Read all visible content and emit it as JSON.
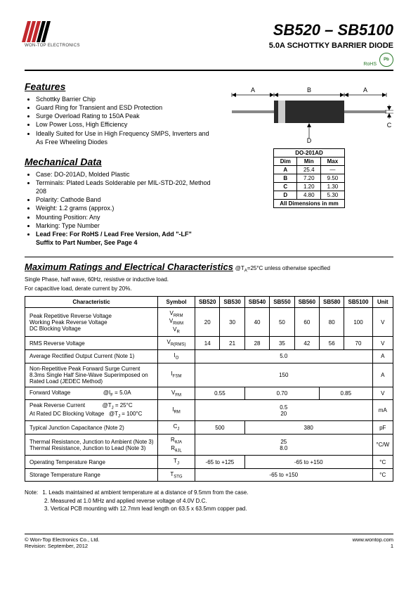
{
  "logo": {
    "company": "WON-TOP ELECTRONICS",
    "bar_colors": [
      "#c1272d",
      "#c1272d",
      "#c1272d",
      "#000000",
      "#000000"
    ]
  },
  "title": {
    "main": "SB520 – SB5100",
    "sub": "5.0A SCHOTTKY BARRIER DIODE"
  },
  "badges": {
    "rohs": "RoHS",
    "pb": "Pb"
  },
  "features": {
    "heading": "Features",
    "items": [
      "Schottky Barrier Chip",
      "Guard Ring for Transient and ESD Protection",
      "Surge Overload Rating to 150A Peak",
      "Low Power Loss, High Efficiency",
      "Ideally Suited for Use in High Frequency SMPS, Inverters and As Free Wheeling Diodes"
    ]
  },
  "mechanical": {
    "heading": "Mechanical Data",
    "items": [
      "Case: DO-201AD, Molded Plastic",
      "Terminals: Plated Leads Solderable per MIL-STD-202, Method 208",
      "Polarity: Cathode Band",
      "Weight: 1.2 grams (approx.)",
      "Mounting Position: Any",
      "Marking: Type Number",
      "Lead Free: For RoHS / Lead Free Version, Add \"-LF\" Suffix to Part Number, See Page 4"
    ]
  },
  "package_diagram": {
    "labels": {
      "A": "A",
      "B": "B",
      "C": "C",
      "D": "D"
    },
    "body_color": "#2b2b2b",
    "band_color": "#cccccc",
    "lead_color": "#888888"
  },
  "dim_table": {
    "title": "DO-201AD",
    "header": [
      "Dim",
      "Min",
      "Max"
    ],
    "rows": [
      [
        "A",
        "25.4",
        "—"
      ],
      [
        "B",
        "7.20",
        "9.50"
      ],
      [
        "C",
        "1.20",
        "1.30"
      ],
      [
        "D",
        "4.80",
        "5.30"
      ]
    ],
    "footer": "All Dimensions in mm"
  },
  "ratings": {
    "heading": "Maximum Ratings and Electrical Characteristics",
    "condition": "@TA=25°C unless otherwise specified",
    "note1": "Single Phase, half wave, 60Hz, resistive or inductive load.",
    "note2": "For capacitive load, derate current by 20%.",
    "columns": [
      "Characteristic",
      "Symbol",
      "SB520",
      "SB530",
      "SB540",
      "SB550",
      "SB560",
      "SB580",
      "SB5100",
      "Unit"
    ],
    "rows": [
      {
        "char": "Peak Repetitive Reverse Voltage<br>Working Peak Reverse Voltage<br>DC Blocking Voltage",
        "symbol": "V<span class='sub'>RRM</span><br>V<span class='sub'>RWM</span><br>V<span class='sub'>R</span>",
        "values": [
          "20",
          "30",
          "40",
          "50",
          "60",
          "80",
          "100"
        ],
        "unit": "V"
      },
      {
        "char": "RMS Reverse Voltage",
        "symbol": "V<span class='sub'>R(RMS)</span>",
        "values": [
          "14",
          "21",
          "28",
          "35",
          "42",
          "56",
          "70"
        ],
        "unit": "V"
      },
      {
        "char": "Average Rectified Output Current (Note 1)",
        "symbol": "I<span class='sub'>O</span>",
        "span": "5.0",
        "unit": "A"
      },
      {
        "char": "Non-Repetitive Peak Forward Surge Current 8.3ms Single Half Sine-Wave Superimposed on Rated Load (JEDEC Method)",
        "symbol": "I<span class='sub'>FSM</span>",
        "span": "150",
        "unit": "A"
      },
      {
        "char": "Forward Voltage &nbsp;&nbsp;&nbsp;&nbsp;&nbsp;&nbsp;&nbsp;&nbsp;&nbsp;&nbsp;&nbsp;&nbsp;&nbsp;&nbsp;&nbsp;&nbsp;&nbsp;&nbsp;&nbsp;&nbsp;@I<span class='sub'>F</span> = 5.0A",
        "symbol": "V<span class='sub'>FM</span>",
        "groups": [
          {
            "span": 2,
            "val": "0.55"
          },
          {
            "span": 3,
            "val": "0.70"
          },
          {
            "span": 2,
            "val": "0.85"
          }
        ],
        "unit": "V"
      },
      {
        "char": "Peak Reverse Current &nbsp;&nbsp;&nbsp;&nbsp;&nbsp;&nbsp;&nbsp;&nbsp;&nbsp;&nbsp;@T<span class='sub'>J</span> = 25°C<br>At Rated DC Blocking Voltage &nbsp;&nbsp;@T<span class='sub'>J</span> = 100°C",
        "symbol": "I<span class='sub'>RM</span>",
        "span": "0.5<br>20",
        "unit": "mA"
      },
      {
        "char": "Typical Junction Capacitance (Note 2)",
        "symbol": "C<span class='sub'>J</span>",
        "groups": [
          {
            "span": 2,
            "val": "500"
          },
          {
            "span": 5,
            "val": "380"
          }
        ],
        "unit": "pF"
      },
      {
        "char": "Thermal Resistance, Junction to Ambient (Note 3)<br>Thermal Resistance, Junction to Lead (Note 3)",
        "symbol": "R<span class='sub'>&theta;JA</span><br>R<span class='sub'>&theta;JL</span>",
        "span": "25<br>8.0",
        "unit": "°C/W"
      },
      {
        "char": "Operating Temperature Range",
        "symbol": "T<span class='sub'>J</span>",
        "groups": [
          {
            "span": 2,
            "val": "-65 to +125"
          },
          {
            "span": 5,
            "val": "-65 to +150"
          }
        ],
        "unit": "°C"
      },
      {
        "char": "Storage Temperature Range",
        "symbol": "T<span class='sub'>STG</span>",
        "span": "-65 to +150",
        "unit": "°C"
      }
    ]
  },
  "notes": {
    "prefix": "Note:",
    "items": [
      "1. Leads maintained at ambient temperature at a distance of 9.5mm from the case.",
      "2. Measured at 1.0 MHz and applied reverse voltage of 4.0V D.C.",
      "3. Vertical PCB mounting with 12.7mm lead length on 63.5 x 63.5mm copper pad."
    ]
  },
  "footer": {
    "copyright": "© Won-Top Electronics Co., Ltd.",
    "revision": "Revision: September, 2012",
    "url": "www.wontop.com",
    "page": "1"
  }
}
